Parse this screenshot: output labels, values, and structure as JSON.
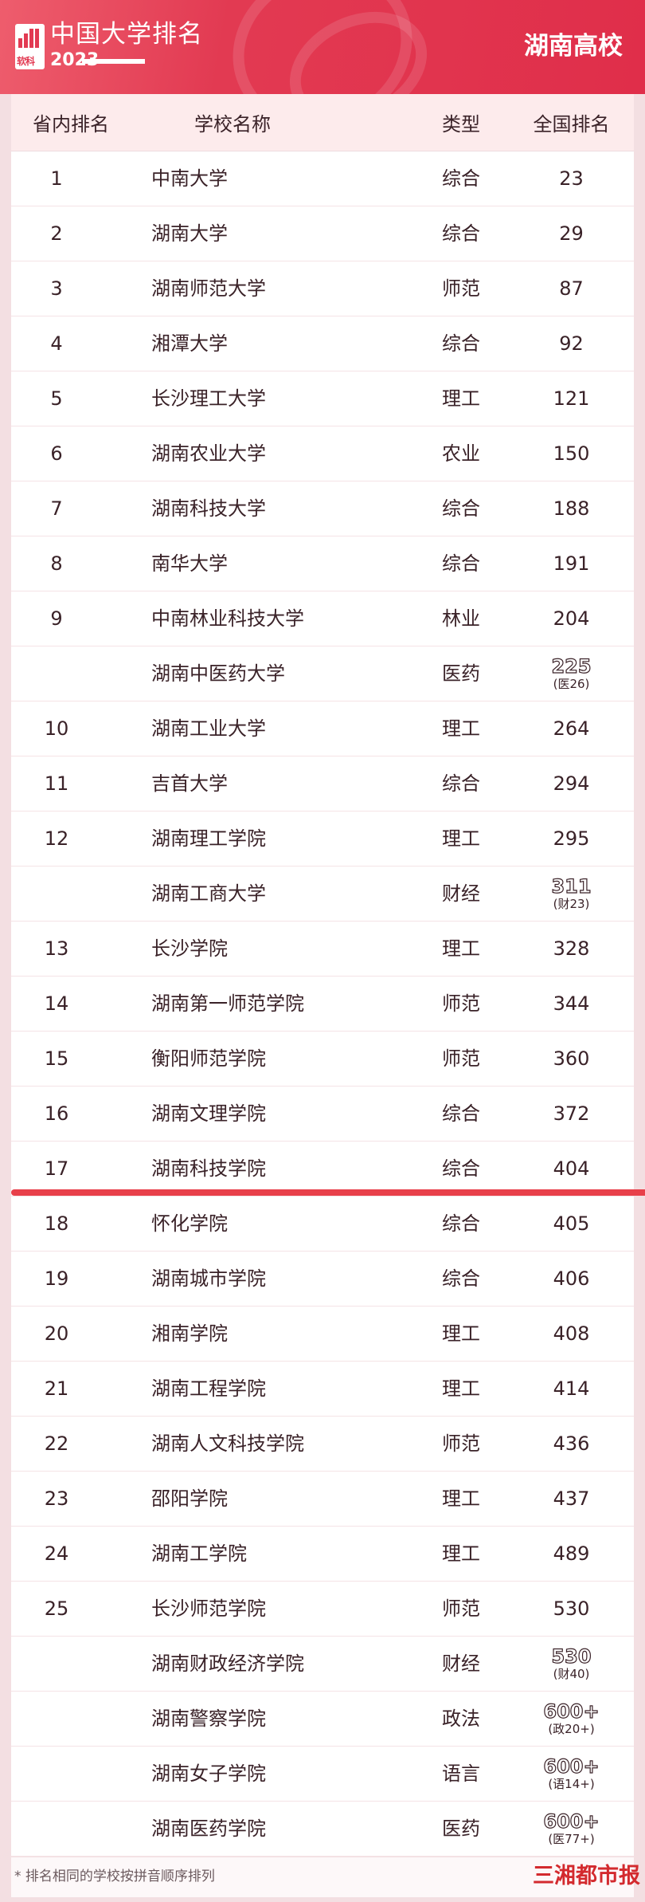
{
  "header": {
    "title": "中国大学排名",
    "year": "2023",
    "region": "湖南高校",
    "logo_text": "软科"
  },
  "columns": [
    "省内排名",
    "学校名称",
    "类型",
    "全国排名"
  ],
  "rows": [
    {
      "rank": "1",
      "name": "中南大学",
      "type": "综合",
      "national": "23"
    },
    {
      "rank": "2",
      "name": "湖南大学",
      "type": "综合",
      "national": "29"
    },
    {
      "rank": "3",
      "name": "湖南师范大学",
      "type": "师范",
      "national": "87"
    },
    {
      "rank": "4",
      "name": "湘潭大学",
      "type": "综合",
      "national": "92"
    },
    {
      "rank": "5",
      "name": "长沙理工大学",
      "type": "理工",
      "national": "121"
    },
    {
      "rank": "6",
      "name": "湖南农业大学",
      "type": "农业",
      "national": "150"
    },
    {
      "rank": "7",
      "name": "湖南科技大学",
      "type": "综合",
      "national": "188"
    },
    {
      "rank": "8",
      "name": "南华大学",
      "type": "综合",
      "national": "191"
    },
    {
      "rank": "9",
      "name": "中南林业科技大学",
      "type": "林业",
      "national": "204"
    },
    {
      "rank": "",
      "name": "湖南中医药大学",
      "type": "医药",
      "national": "225",
      "category_rank": "(医26)"
    },
    {
      "rank": "10",
      "name": "湖南工业大学",
      "type": "理工",
      "national": "264"
    },
    {
      "rank": "11",
      "name": "吉首大学",
      "type": "综合",
      "national": "294"
    },
    {
      "rank": "12",
      "name": "湖南理工学院",
      "type": "理工",
      "national": "295"
    },
    {
      "rank": "",
      "name": "湖南工商大学",
      "type": "财经",
      "national": "311",
      "category_rank": "(财23)"
    },
    {
      "rank": "13",
      "name": "长沙学院",
      "type": "理工",
      "national": "328"
    },
    {
      "rank": "14",
      "name": "湖南第一师范学院",
      "type": "师范",
      "national": "344"
    },
    {
      "rank": "15",
      "name": "衡阳师范学院",
      "type": "师范",
      "national": "360"
    },
    {
      "rank": "16",
      "name": "湖南文理学院",
      "type": "综合",
      "national": "372"
    },
    {
      "rank": "17",
      "name": "湖南科技学院",
      "type": "综合",
      "national": "404"
    },
    {
      "rank": "18",
      "name": "怀化学院",
      "type": "综合",
      "national": "405"
    },
    {
      "rank": "19",
      "name": "湖南城市学院",
      "type": "综合",
      "national": "406"
    },
    {
      "rank": "20",
      "name": "湘南学院",
      "type": "理工",
      "national": "408"
    },
    {
      "rank": "21",
      "name": "湖南工程学院",
      "type": "理工",
      "national": "414"
    },
    {
      "rank": "22",
      "name": "湖南人文科技学院",
      "type": "师范",
      "national": "436"
    },
    {
      "rank": "23",
      "name": "邵阳学院",
      "type": "理工",
      "national": "437"
    },
    {
      "rank": "24",
      "name": "湖南工学院",
      "type": "理工",
      "national": "489"
    },
    {
      "rank": "25",
      "name": "长沙师范学院",
      "type": "师范",
      "national": "530"
    },
    {
      "rank": "",
      "name": "湖南财政经济学院",
      "type": "财经",
      "national": "530",
      "category_rank": "(财40)"
    },
    {
      "rank": "",
      "name": "湖南警察学院",
      "type": "政法",
      "national": "600+",
      "category_rank": "(政20+)"
    },
    {
      "rank": "",
      "name": "湖南女子学院",
      "type": "语言",
      "national": "600+",
      "category_rank": "(语14+)"
    },
    {
      "rank": "",
      "name": "湖南医药学院",
      "type": "医药",
      "national": "600+",
      "category_rank": "(医77+)"
    }
  ],
  "footer": {
    "note": "* 排名相同的学校按拼音顺序排列",
    "brand": "三湘都市报"
  },
  "colors": {
    "brand_red": "#e02e4a",
    "divider_red": "#e8404a",
    "text": "#3a2228"
  }
}
